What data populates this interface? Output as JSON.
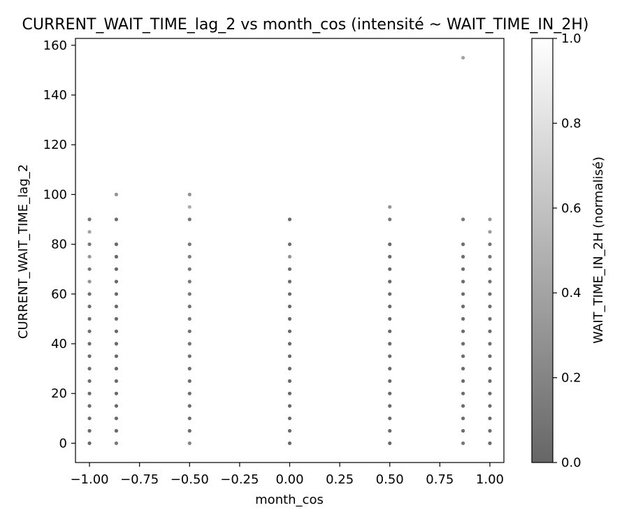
{
  "chart_data": {
    "type": "scatter",
    "title": "CURRENT_WAIT_TIME_lag_2 vs month_cos (intensité ~ WAIT_TIME_IN_2H)",
    "xlabel": "month_cos",
    "ylabel": "CURRENT_WAIT_TIME_lag_2",
    "xlim": [
      -1.07,
      1.07
    ],
    "ylim": [
      -7.75,
      162.75
    ],
    "x_ticks": [
      -1.0,
      -0.75,
      -0.5,
      -0.25,
      0.0,
      0.25,
      0.5,
      0.75,
      1.0
    ],
    "x_tick_labels": [
      "−1.00",
      "−0.75",
      "−0.50",
      "−0.25",
      "0.00",
      "0.25",
      "0.50",
      "0.75",
      "1.00"
    ],
    "y_ticks": [
      0,
      20,
      40,
      60,
      80,
      100,
      120,
      140,
      160
    ],
    "y_tick_labels": [
      "0",
      "20",
      "40",
      "60",
      "80",
      "100",
      "120",
      "140",
      "160"
    ],
    "grid": false,
    "colorbar": {
      "label": "WAIT_TIME_IN_2H (normalisé)",
      "range": [
        0.0,
        1.0
      ],
      "ticks": [
        0.0,
        0.2,
        0.4,
        0.6,
        0.8,
        1.0
      ],
      "tick_labels": [
        "0.0",
        "0.2",
        "0.4",
        "0.6",
        "0.8",
        "1.0"
      ],
      "colormap": "gray",
      "alpha": 0.6
    },
    "series": [
      {
        "x": -1.0,
        "points": [
          [
            0,
            0.02
          ],
          [
            5,
            0.02
          ],
          [
            10,
            0.03
          ],
          [
            15,
            0.03
          ],
          [
            20,
            0.03
          ],
          [
            25,
            0.04
          ],
          [
            30,
            0.04
          ],
          [
            35,
            0.04
          ],
          [
            40,
            0.05
          ],
          [
            45,
            0.05
          ],
          [
            50,
            0.05
          ],
          [
            55,
            0.06
          ],
          [
            60,
            0.06
          ],
          [
            65,
            0.3
          ],
          [
            70,
            0.12
          ],
          [
            75,
            0.32
          ],
          [
            80,
            0.12
          ],
          [
            85,
            0.4
          ],
          [
            90,
            0.08
          ]
        ]
      },
      {
        "x": -0.866,
        "points": [
          [
            0,
            0.12
          ],
          [
            5,
            0.02
          ],
          [
            10,
            0.02
          ],
          [
            15,
            0.02
          ],
          [
            20,
            0.02
          ],
          [
            25,
            0.02
          ],
          [
            30,
            0.02
          ],
          [
            35,
            0.02
          ],
          [
            40,
            0.02
          ],
          [
            45,
            0.02
          ],
          [
            50,
            0.02
          ],
          [
            55,
            0.02
          ],
          [
            60,
            0.02
          ],
          [
            65,
            0.02
          ],
          [
            70,
            0.02
          ],
          [
            75,
            0.02
          ],
          [
            80,
            0.02
          ],
          [
            90,
            0.05
          ],
          [
            100,
            0.3
          ]
        ]
      },
      {
        "x": -0.5,
        "points": [
          [
            0,
            0.2
          ],
          [
            5,
            0.03
          ],
          [
            10,
            0.04
          ],
          [
            15,
            0.03
          ],
          [
            20,
            0.04
          ],
          [
            25,
            0.04
          ],
          [
            30,
            0.05
          ],
          [
            35,
            0.05
          ],
          [
            40,
            0.08
          ],
          [
            45,
            0.07
          ],
          [
            50,
            0.1
          ],
          [
            55,
            0.07
          ],
          [
            60,
            0.1
          ],
          [
            65,
            0.12
          ],
          [
            70,
            0.1
          ],
          [
            75,
            0.15
          ],
          [
            80,
            0.1
          ],
          [
            90,
            0.1
          ],
          [
            95,
            0.45
          ],
          [
            100,
            0.3
          ]
        ]
      },
      {
        "x": 0.0,
        "points": [
          [
            0,
            0.02
          ],
          [
            5,
            0.02
          ],
          [
            10,
            0.02
          ],
          [
            15,
            0.02
          ],
          [
            20,
            0.02
          ],
          [
            25,
            0.02
          ],
          [
            30,
            0.02
          ],
          [
            35,
            0.02
          ],
          [
            40,
            0.02
          ],
          [
            45,
            0.02
          ],
          [
            50,
            0.02
          ],
          [
            55,
            0.02
          ],
          [
            60,
            0.03
          ],
          [
            65,
            0.05
          ],
          [
            70,
            0.05
          ],
          [
            75,
            0.3
          ],
          [
            80,
            0.05
          ],
          [
            90,
            0.03
          ]
        ]
      },
      {
        "x": 0.5,
        "points": [
          [
            0,
            0.02
          ],
          [
            5,
            0.02
          ],
          [
            10,
            0.02
          ],
          [
            15,
            0.02
          ],
          [
            20,
            0.02
          ],
          [
            25,
            0.02
          ],
          [
            30,
            0.02
          ],
          [
            35,
            0.02
          ],
          [
            40,
            0.02
          ],
          [
            45,
            0.02
          ],
          [
            50,
            0.02
          ],
          [
            55,
            0.02
          ],
          [
            60,
            0.02
          ],
          [
            65,
            0.02
          ],
          [
            70,
            0.02
          ],
          [
            75,
            0.02
          ],
          [
            80,
            0.02
          ],
          [
            90,
            0.1
          ],
          [
            95,
            0.3
          ]
        ]
      },
      {
        "x": 0.866,
        "points": [
          [
            0,
            0.12
          ],
          [
            5,
            0.04
          ],
          [
            10,
            0.04
          ],
          [
            15,
            0.04
          ],
          [
            20,
            0.04
          ],
          [
            25,
            0.04
          ],
          [
            30,
            0.04
          ],
          [
            35,
            0.04
          ],
          [
            40,
            0.04
          ],
          [
            45,
            0.04
          ],
          [
            50,
            0.04
          ],
          [
            55,
            0.04
          ],
          [
            60,
            0.04
          ],
          [
            65,
            0.04
          ],
          [
            70,
            0.04
          ],
          [
            75,
            0.04
          ],
          [
            80,
            0.05
          ],
          [
            90,
            0.1
          ],
          [
            155,
            0.4
          ]
        ]
      },
      {
        "x": 1.0,
        "points": [
          [
            0,
            0.03
          ],
          [
            5,
            0.04
          ],
          [
            10,
            0.03
          ],
          [
            15,
            0.03
          ],
          [
            20,
            0.03
          ],
          [
            25,
            0.03
          ],
          [
            30,
            0.03
          ],
          [
            35,
            0.04
          ],
          [
            40,
            0.05
          ],
          [
            45,
            0.04
          ],
          [
            50,
            0.05
          ],
          [
            55,
            0.04
          ],
          [
            60,
            0.05
          ],
          [
            65,
            0.07
          ],
          [
            70,
            0.08
          ],
          [
            75,
            0.1
          ],
          [
            80,
            0.1
          ],
          [
            85,
            0.35
          ],
          [
            90,
            0.3
          ]
        ]
      }
    ]
  }
}
